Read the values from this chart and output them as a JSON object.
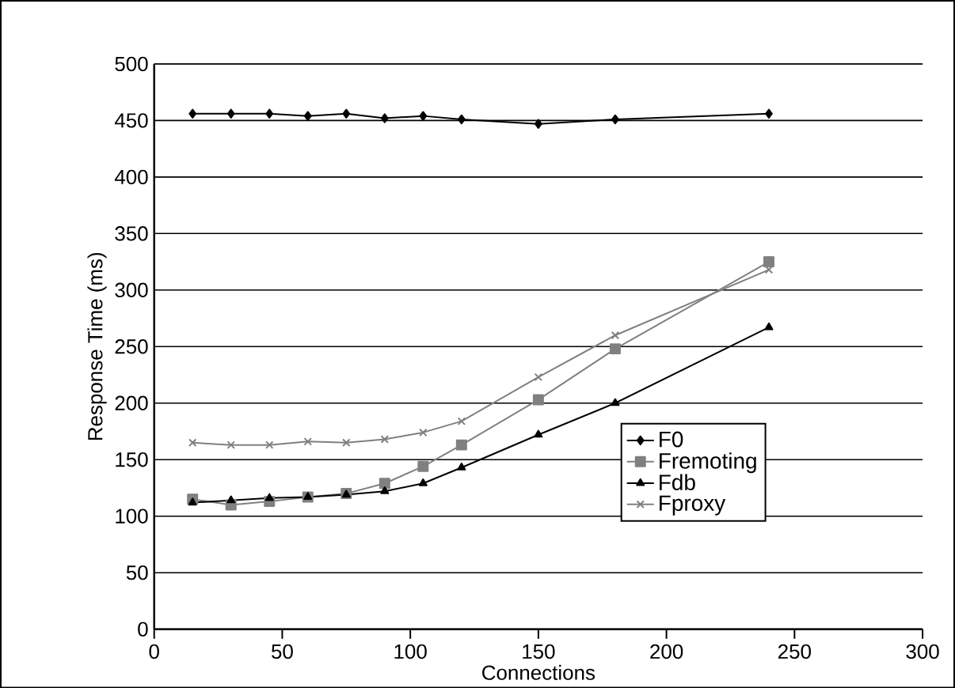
{
  "chart_data": {
    "type": "line",
    "xlabel": "Connections",
    "ylabel": "Response Time (ms)",
    "x": [
      15,
      30,
      45,
      60,
      75,
      90,
      105,
      120,
      150,
      180,
      240
    ],
    "series": [
      {
        "name": "F0",
        "color": "#000000",
        "marker": "diamond",
        "values": [
          456,
          456,
          456,
          454,
          456,
          452,
          454,
          451,
          447,
          451,
          456
        ]
      },
      {
        "name": "Fremoting",
        "color": "#808080",
        "marker": "square",
        "values": [
          115,
          110,
          113,
          117,
          120,
          129,
          144,
          163,
          203,
          248,
          325
        ]
      },
      {
        "name": "Fdb",
        "color": "#000000",
        "marker": "triangle",
        "values": [
          112,
          114,
          116,
          117,
          119,
          122,
          129,
          143,
          172,
          200,
          267
        ]
      },
      {
        "name": "Fproxy",
        "color": "#808080",
        "marker": "cross",
        "values": [
          165,
          163,
          163,
          166,
          165,
          168,
          174,
          184,
          223,
          260,
          318
        ]
      }
    ],
    "xlim": [
      0,
      300
    ],
    "xticks": [
      0,
      50,
      100,
      150,
      200,
      250,
      300
    ],
    "ylim": [
      0,
      500
    ],
    "yticks": [
      0,
      50,
      100,
      150,
      200,
      250,
      300,
      350,
      400,
      450,
      500
    ],
    "grid": "y",
    "legend": "bottom right",
    "line_style": "solid"
  }
}
